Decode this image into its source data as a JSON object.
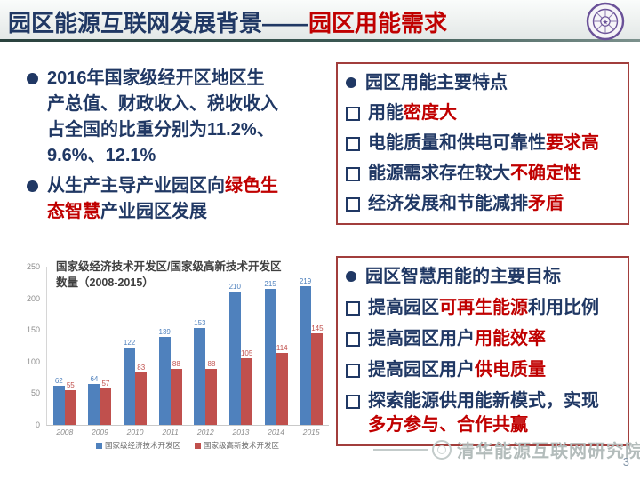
{
  "colors": {
    "navy": "#203864",
    "red": "#c00000",
    "box_border": "#a23e3c",
    "bar_blue": "#4f81bd",
    "bar_red": "#c0504d",
    "header_line": "#3d5a55",
    "watermark_gray": "#b3bcbb"
  },
  "header": {
    "title_main": "园区能源互联网发展背景——",
    "title_accent": "园区用能需求",
    "logo": "tsinghua-university-seal"
  },
  "markers": {
    "section_bullet": "filled-circle",
    "item_bullet": "hollow-square"
  },
  "left_bullets": [
    {
      "segments": [
        {
          "text": "2016年国家级经开区地区生产总值、财政收入、税收收入占全国的比重分别为11.2%、9.6%、12.1%",
          "color": "navy"
        }
      ]
    },
    {
      "segments": [
        {
          "text": "从生产主导产业园区向",
          "color": "navy"
        },
        {
          "text": "绿色生态智慧",
          "color": "red"
        },
        {
          "text": "产业园区发展",
          "color": "navy"
        }
      ]
    }
  ],
  "box1": {
    "title": "园区用能主要特点",
    "items": [
      {
        "segments": [
          {
            "text": "用能",
            "color": "navy"
          },
          {
            "text": "密度大",
            "color": "red"
          }
        ]
      },
      {
        "segments": [
          {
            "text": "电能质量和供电可靠性",
            "color": "navy"
          },
          {
            "text": "要求高",
            "color": "red"
          }
        ]
      },
      {
        "segments": [
          {
            "text": "能源需求存在较大",
            "color": "navy"
          },
          {
            "text": "不确定性",
            "color": "red"
          }
        ]
      },
      {
        "segments": [
          {
            "text": "经济发展和节能减排",
            "color": "navy"
          },
          {
            "text": "矛盾",
            "color": "red"
          }
        ]
      }
    ]
  },
  "box2": {
    "title": "园区智慧用能的主要目标",
    "items": [
      {
        "segments": [
          {
            "text": "提高园区",
            "color": "navy"
          },
          {
            "text": "可再生能源",
            "color": "red"
          },
          {
            "text": "利用比例",
            "color": "navy"
          }
        ]
      },
      {
        "segments": [
          {
            "text": "提高园区用户",
            "color": "navy"
          },
          {
            "text": "用能效率",
            "color": "red"
          }
        ]
      },
      {
        "segments": [
          {
            "text": "提高园区用户",
            "color": "navy"
          },
          {
            "text": "供电质量",
            "color": "red"
          }
        ]
      },
      {
        "segments": [
          {
            "text": "探索能源供用能新模式，实现",
            "color": "navy",
            "break_after": true
          },
          {
            "text": "多方参与、合作共赢",
            "color": "red"
          }
        ]
      }
    ]
  },
  "chart_data": {
    "type": "bar",
    "title": "国家级经济技术开发区/国家级高新技术开发区数量（2008-2015）",
    "categories": [
      "2008",
      "2009",
      "2010",
      "2011",
      "2012",
      "2013",
      "2014",
      "2015"
    ],
    "series": [
      {
        "name": "国家级经济技术开发区",
        "color": "#4f81bd",
        "values": [
          62,
          64,
          122,
          139,
          153,
          210,
          215,
          219
        ]
      },
      {
        "name": "国家级高新技术开发区",
        "color": "#c0504d",
        "values": [
          55,
          57,
          83,
          88,
          88,
          105,
          114,
          145
        ]
      }
    ],
    "xlabel": "",
    "ylabel": "",
    "ylim": [
      0,
      250
    ],
    "yticks": [
      0,
      50,
      100,
      150,
      200,
      250
    ],
    "grid": false,
    "legend_position": "bottom",
    "data_labels": true
  },
  "footer": {
    "watermark": "清华能源互联网研究院",
    "page_number": "3"
  }
}
